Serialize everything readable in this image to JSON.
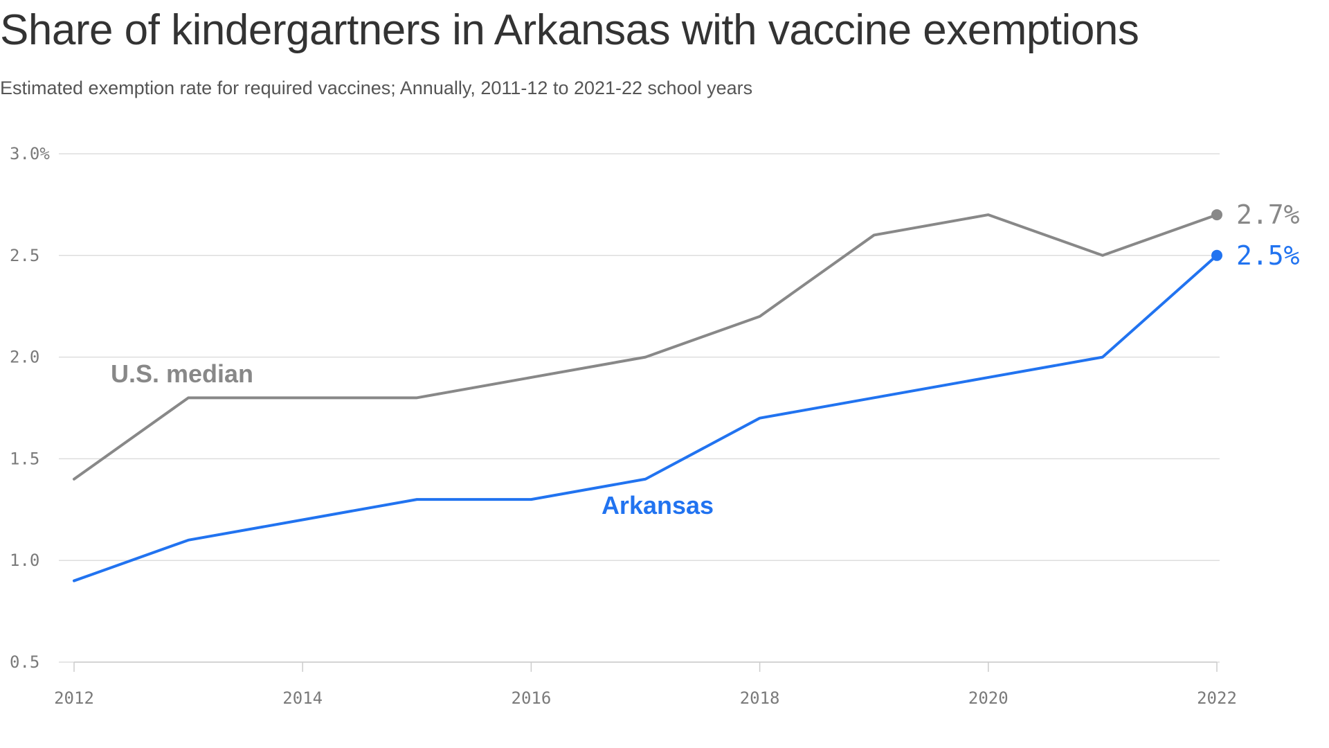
{
  "title": "Share of kindergartners in Arkansas with vaccine exemptions",
  "subtitle": "Estimated exemption rate for required vaccines; Annually, 2011-12 to 2021-22 school years",
  "chart_data": {
    "type": "line",
    "x": [
      2012,
      2013,
      2014,
      2015,
      2016,
      2017,
      2018,
      2019,
      2020,
      2021,
      2022
    ],
    "series": [
      {
        "name": "U.S. median",
        "color": "#888888",
        "values": [
          1.4,
          1.8,
          1.8,
          1.8,
          1.9,
          2.0,
          2.2,
          2.6,
          2.7,
          2.5,
          2.7
        ],
        "end_label": "2.7%"
      },
      {
        "name": "Arkansas",
        "color": "#2173f0",
        "values": [
          0.9,
          1.1,
          1.2,
          1.3,
          1.3,
          1.4,
          1.7,
          1.8,
          1.9,
          2.0,
          2.5
        ],
        "end_label": "2.5%"
      }
    ],
    "xlim": [
      2012,
      2022
    ],
    "ylim": [
      0.5,
      3.0
    ],
    "x_ticks": [
      "2012",
      "2014",
      "2016",
      "2018",
      "2020",
      "2022"
    ],
    "y_ticks": [
      "3.0%",
      "2.5",
      "2.0",
      "1.5",
      "1.0",
      "0.5"
    ],
    "grid": "horizontal"
  }
}
